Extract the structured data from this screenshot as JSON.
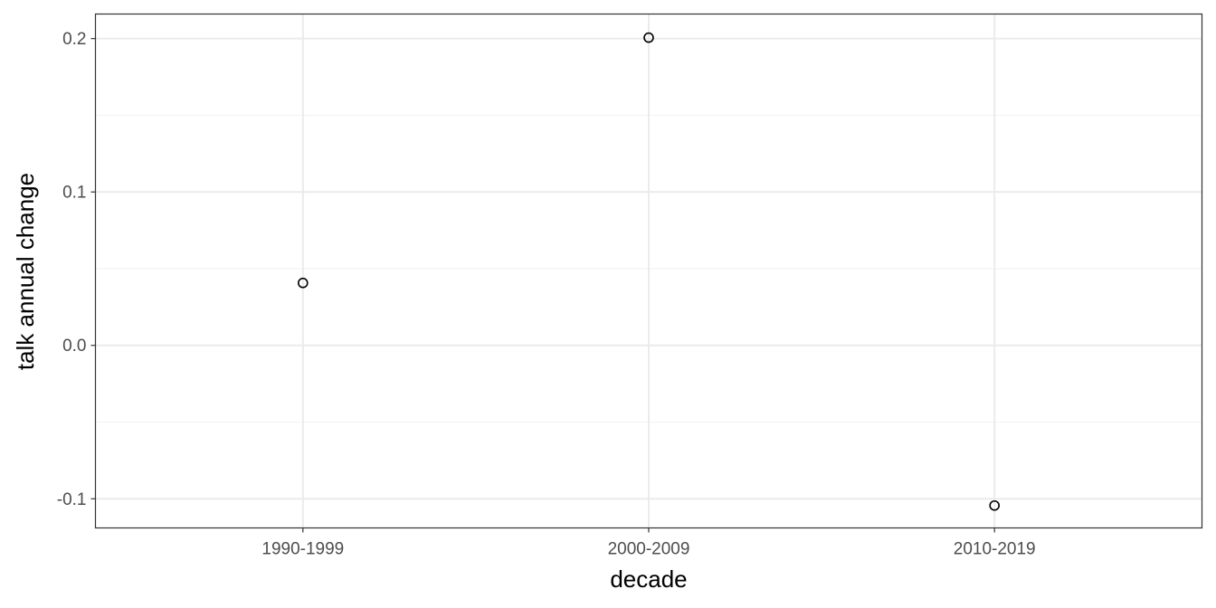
{
  "chart_data": {
    "type": "scatter",
    "title": "",
    "xlabel": "decade",
    "ylabel": "talk annual change",
    "categories": [
      "1990-1999",
      "2000-2009",
      "2010-2019"
    ],
    "series": [
      {
        "values": [
          0.0407,
          0.2006,
          -0.1044
        ]
      }
    ],
    "ylim": [
      -0.119,
      0.216
    ],
    "y_ticks": [
      -0.1,
      0.0,
      0.1,
      0.2
    ],
    "y_tick_labels": [
      "-0.1",
      "0.0",
      "0.1",
      "0.2"
    ],
    "grid": true,
    "legend": "none",
    "theme": "black-and-white",
    "colors": {
      "panel_border": "#333333",
      "grid_major": "#ebebeb",
      "grid_minor": "#f2f2f2",
      "point_stroke": "#000000",
      "tick_text": "#4d4d4d"
    }
  }
}
